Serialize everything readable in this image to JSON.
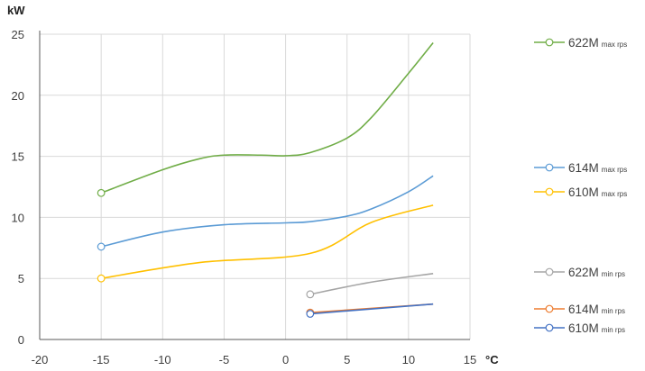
{
  "chart_data": {
    "type": "line",
    "title": "",
    "xlabel": "°C",
    "ylabel": "kW",
    "xlim": [
      -20,
      15
    ],
    "ylim": [
      0,
      25
    ],
    "xticks": [
      -20,
      -15,
      -10,
      -5,
      0,
      5,
      10,
      15
    ],
    "yticks": [
      0,
      5,
      10,
      15,
      20,
      25
    ],
    "grid": true,
    "legend_position": "right",
    "series": [
      {
        "name": "622M",
        "tag": "max rps",
        "color": "#70ad47",
        "x": [
          -15,
          -10,
          -7,
          -5,
          -2,
          0,
          2,
          5,
          7,
          10,
          12
        ],
        "y": [
          12.0,
          13.9,
          14.8,
          15.1,
          15.1,
          15.05,
          15.3,
          16.5,
          18.2,
          21.8,
          24.3
        ]
      },
      {
        "name": "614M",
        "tag": "max rps",
        "color": "#5b9bd5",
        "x": [
          -15,
          -10,
          -5,
          0,
          2,
          5,
          7,
          10,
          12
        ],
        "y": [
          7.6,
          8.8,
          9.4,
          9.55,
          9.65,
          10.1,
          10.7,
          12.1,
          13.4
        ]
      },
      {
        "name": "610M",
        "tag": "max rps",
        "color": "#ffc000",
        "x": [
          -15,
          -7,
          2,
          7,
          12
        ],
        "y": [
          5.0,
          6.3,
          7.05,
          9.6,
          11.0
        ]
      },
      {
        "name": "622M",
        "tag": "min rps",
        "color": "#a5a5a5",
        "x": [
          2,
          7,
          12
        ],
        "y": [
          3.7,
          4.7,
          5.4
        ]
      },
      {
        "name": "614M",
        "tag": "min rps",
        "color": "#ed7d31",
        "x": [
          2,
          12
        ],
        "y": [
          2.2,
          2.9
        ]
      },
      {
        "name": "610M",
        "tag": "min rps",
        "color": "#4472c4",
        "x": [
          2,
          12
        ],
        "y": [
          2.1,
          2.9
        ]
      }
    ]
  }
}
